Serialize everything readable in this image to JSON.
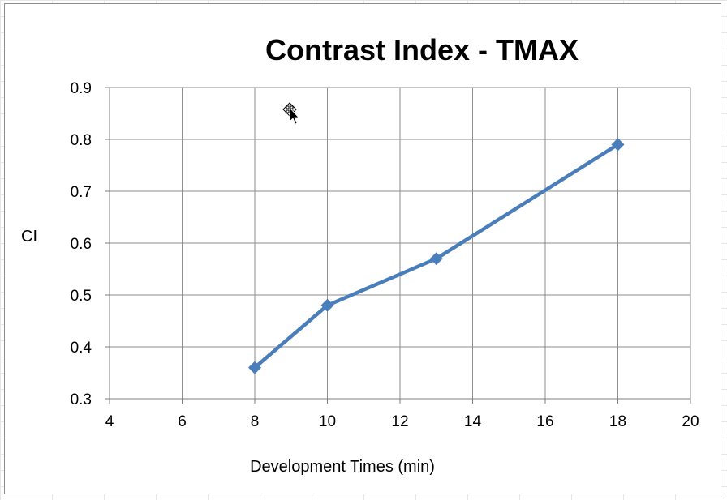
{
  "chart_data": {
    "type": "line",
    "title": "Contrast Index - TMAX",
    "xlabel": "Development Times (min)",
    "ylabel": "CI",
    "xlim": [
      4,
      20
    ],
    "ylim": [
      0.3,
      0.9
    ],
    "x_ticks": [
      "4",
      "6",
      "8",
      "10",
      "12",
      "14",
      "16",
      "18",
      "20"
    ],
    "y_ticks": [
      "0.3",
      "0.4",
      "0.5",
      "0.6",
      "0.7",
      "0.8",
      "0.9"
    ],
    "grid": true,
    "legend": "none",
    "marker": "diamond",
    "series": [
      {
        "color": "#4a7ebb",
        "x": [
          8,
          10,
          13,
          18
        ],
        "y": [
          0.36,
          0.48,
          0.57,
          0.79
        ]
      }
    ]
  }
}
